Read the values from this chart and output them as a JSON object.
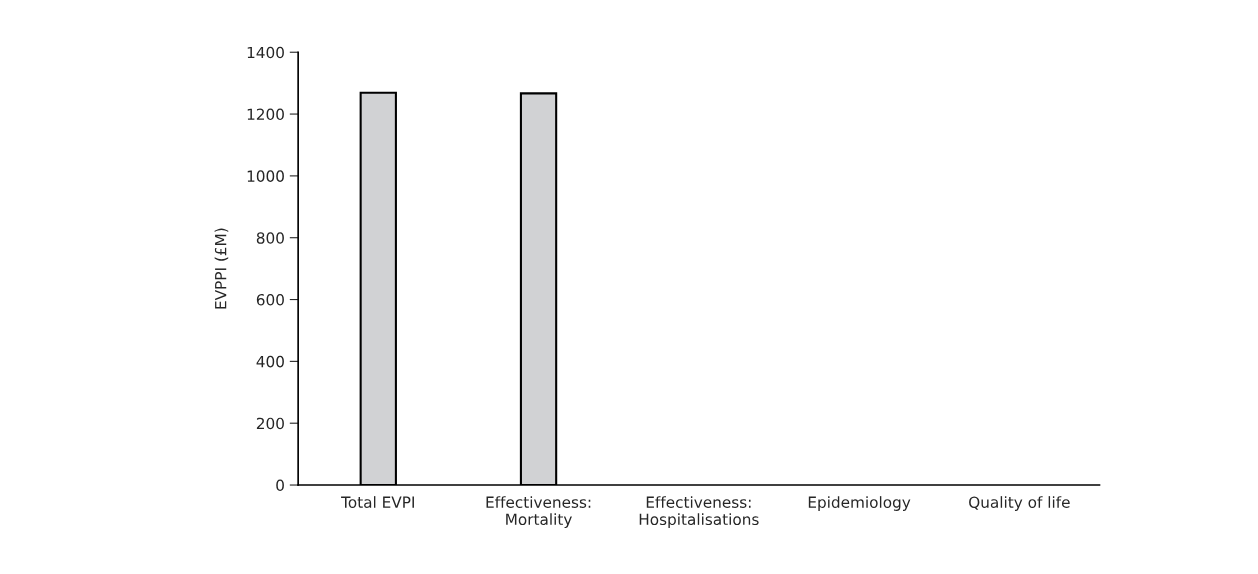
{
  "chart_data": {
    "type": "bar",
    "ylabel": "EVPPI (£M)",
    "categories": [
      "Total EVPI",
      "Effectiveness:\nMortality",
      "Effectiveness:\nHospitalisations",
      "Epidemiology",
      "Quality of life"
    ],
    "values": [
      1269,
      1267,
      0,
      0,
      0
    ],
    "color": "#d1d2d4",
    "ylim": [
      0,
      1400
    ],
    "yticks": [
      0,
      200,
      400,
      600,
      800,
      1000,
      1200,
      1400
    ],
    "grid": false,
    "legend": false
  }
}
